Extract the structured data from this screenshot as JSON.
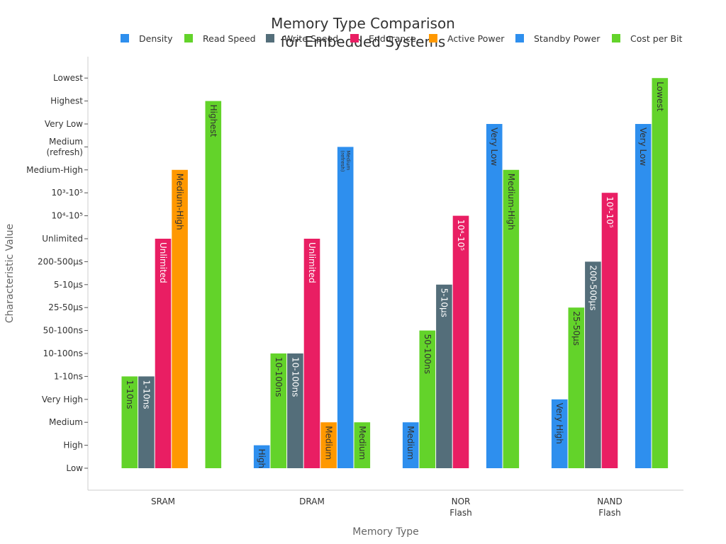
{
  "chart_data": {
    "type": "bar",
    "title": "Memory Type Comparison",
    "subtitle": "for Embedded Systems",
    "xlabel": "Memory Type",
    "ylabel": "Characteristic Value",
    "categories": [
      "SRAM",
      "DRAM",
      "NOR\nFlash",
      "NAND\nFlash"
    ],
    "y_ticks": [
      "Low",
      "High",
      "Medium",
      "Very High",
      "1-10ns",
      "10-100ns",
      "50-100ns",
      "25-50μs",
      "5-10μs",
      "200-500μs",
      "Unlimited",
      "10⁴-10⁵",
      "10³-10⁵",
      "Medium-High",
      "Medium\n(refresh)",
      "Very Low",
      "Highest",
      "Lowest"
    ],
    "legend_position": "top",
    "grid": false,
    "series": [
      {
        "name": "Density",
        "color": "#2E8FEE",
        "values": [
          null,
          "High",
          "Medium",
          "Very High"
        ]
      },
      {
        "name": "Read Speed",
        "color": "#63D32A",
        "values": [
          "1-10ns",
          "10-100ns",
          "50-100ns",
          "25-50μs"
        ]
      },
      {
        "name": "Write Speed",
        "color": "#546E7A",
        "values": [
          "1-10ns",
          "10-100ns",
          "5-10μs",
          "200-500μs"
        ]
      },
      {
        "name": "Endurance",
        "color": "#E91E63",
        "values": [
          "Unlimited",
          "Unlimited",
          "10⁴-10⁵",
          "10³-10⁵"
        ]
      },
      {
        "name": "Active Power",
        "color": "#FF9800",
        "values": [
          "Medium-High",
          "Medium",
          null,
          null
        ]
      },
      {
        "name": "Standby Power",
        "color": "#2E8FEE",
        "values": [
          null,
          "Medium\n(refresh)",
          "Very Low",
          "Very Low"
        ]
      },
      {
        "name": "Cost per Bit",
        "color": "#63D32A",
        "values": [
          "Highest",
          "Medium",
          "Medium-High",
          "Lowest"
        ]
      }
    ]
  }
}
